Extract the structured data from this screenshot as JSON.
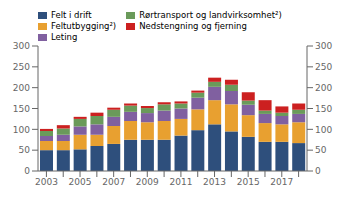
{
  "chart_data": {
    "type": "bar",
    "stacked": true,
    "grid": false,
    "legend": "upper left",
    "categories": [
      "2003",
      null,
      "2005",
      null,
      "2007",
      null,
      "2009",
      null,
      "2011",
      null,
      "2013",
      null,
      "2015",
      null,
      "2017",
      null
    ],
    "series": [
      {
        "name": "Felt i drift",
        "color": "#2e4f7c",
        "values": [
          50,
          50,
          52,
          60,
          65,
          75,
          75,
          75,
          85,
          98,
          112,
          95,
          82,
          70,
          70,
          67
        ]
      },
      {
        "name": "Feltutbygging²)",
        "color": "#e8a030",
        "values": [
          22,
          22,
          35,
          27,
          43,
          45,
          42,
          45,
          40,
          50,
          58,
          65,
          52,
          45,
          42,
          50
        ]
      },
      {
        "name": "Leting",
        "color": "#8060a0",
        "values": [
          12,
          15,
          20,
          25,
          22,
          22,
          22,
          25,
          25,
          28,
          32,
          32,
          25,
          22,
          20,
          20
        ]
      },
      {
        "name": "Rørtransport og landvirksomhet²)",
        "color": "#6a9a5a",
        "values": [
          12,
          15,
          18,
          20,
          17,
          15,
          12,
          15,
          12,
          12,
          12,
          15,
          10,
          8,
          8,
          10
        ]
      },
      {
        "name": "Nedstengning og fjerning",
        "color": "#cc2020",
        "values": [
          5,
          8,
          5,
          8,
          5,
          5,
          5,
          5,
          5,
          5,
          10,
          12,
          20,
          25,
          15,
          15
        ]
      }
    ],
    "ylim": [
      0,
      300
    ],
    "yticks": [
      0,
      50,
      100,
      150,
      200,
      250,
      300
    ],
    "y2lim": [
      0,
      300
    ],
    "y2ticks": [
      0,
      50,
      100,
      150,
      200,
      250,
      300
    ]
  }
}
